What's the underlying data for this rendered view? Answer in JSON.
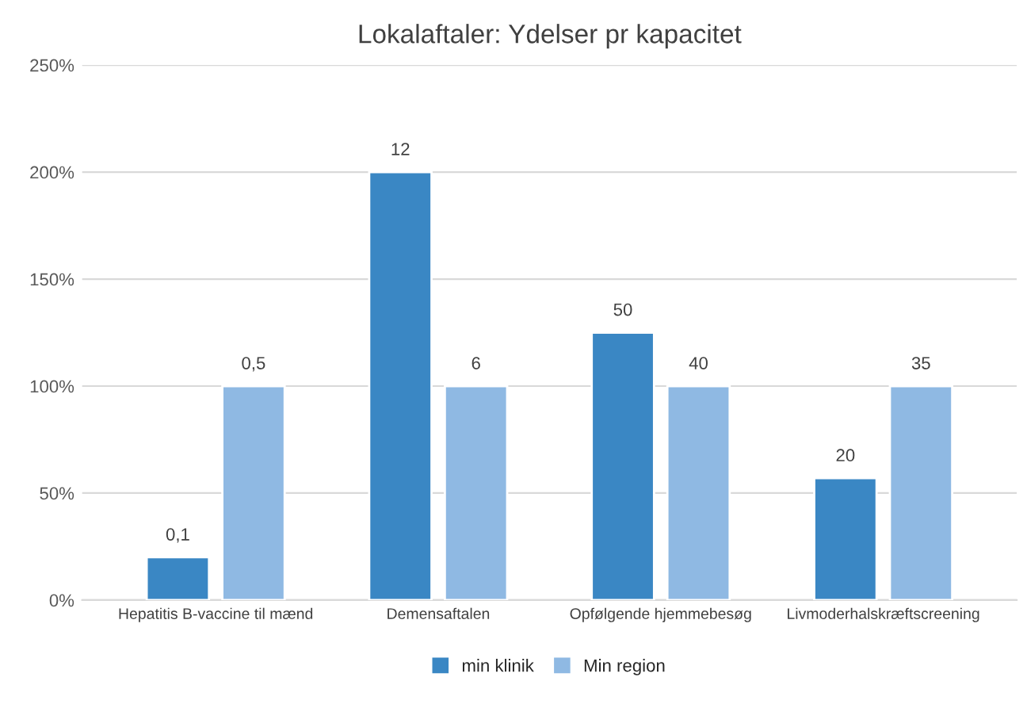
{
  "chart_data": {
    "type": "bar",
    "title": "Lokalaftaler: Ydelser pr kapacitet",
    "categories": [
      "Hepatitis B-vaccine til mænd",
      "Demensaftalen",
      "Opfølgende hjemmebesøg",
      "Livmoderhalskræftscreening"
    ],
    "series": [
      {
        "name": "min klinik",
        "color": "#3a87c4",
        "values": [
          20,
          200,
          125,
          57
        ]
      },
      {
        "name": "Min region",
        "color": "#8fb9e3",
        "values": [
          100,
          100,
          100,
          100
        ]
      }
    ],
    "annotations": [
      {
        "text": "0,1",
        "x": "Hepatitis B-vaccine til mænd",
        "y": 20
      },
      {
        "text": "0,5",
        "x": "Hepatitis B-vaccine til mænd",
        "y": 100
      },
      {
        "text": "12",
        "x": "Demensaftalen",
        "y": 200
      },
      {
        "text": "6",
        "x": "Demensaftalen",
        "y": 100
      },
      {
        "text": "50",
        "x": "Opfølgende hjemmebesøg",
        "y": 125
      },
      {
        "text": "40",
        "x": "Opfølgende hjemmebesøg",
        "y": 100
      },
      {
        "text": "20",
        "x": "Livmoderhalskræftscreening",
        "y": 57
      },
      {
        "text": "35",
        "x": "Livmoderhalskræftscreening",
        "y": 100
      }
    ],
    "ylim": [
      0,
      250
    ],
    "yticks": [
      {
        "value": 0,
        "label": "0%"
      },
      {
        "value": 50,
        "label": "50%"
      },
      {
        "value": 100,
        "label": "100%"
      },
      {
        "value": 150,
        "label": "150%"
      },
      {
        "value": 200,
        "label": "200%"
      },
      {
        "value": 250,
        "label": "250%"
      }
    ],
    "grid": "y",
    "legend": "bottom"
  }
}
